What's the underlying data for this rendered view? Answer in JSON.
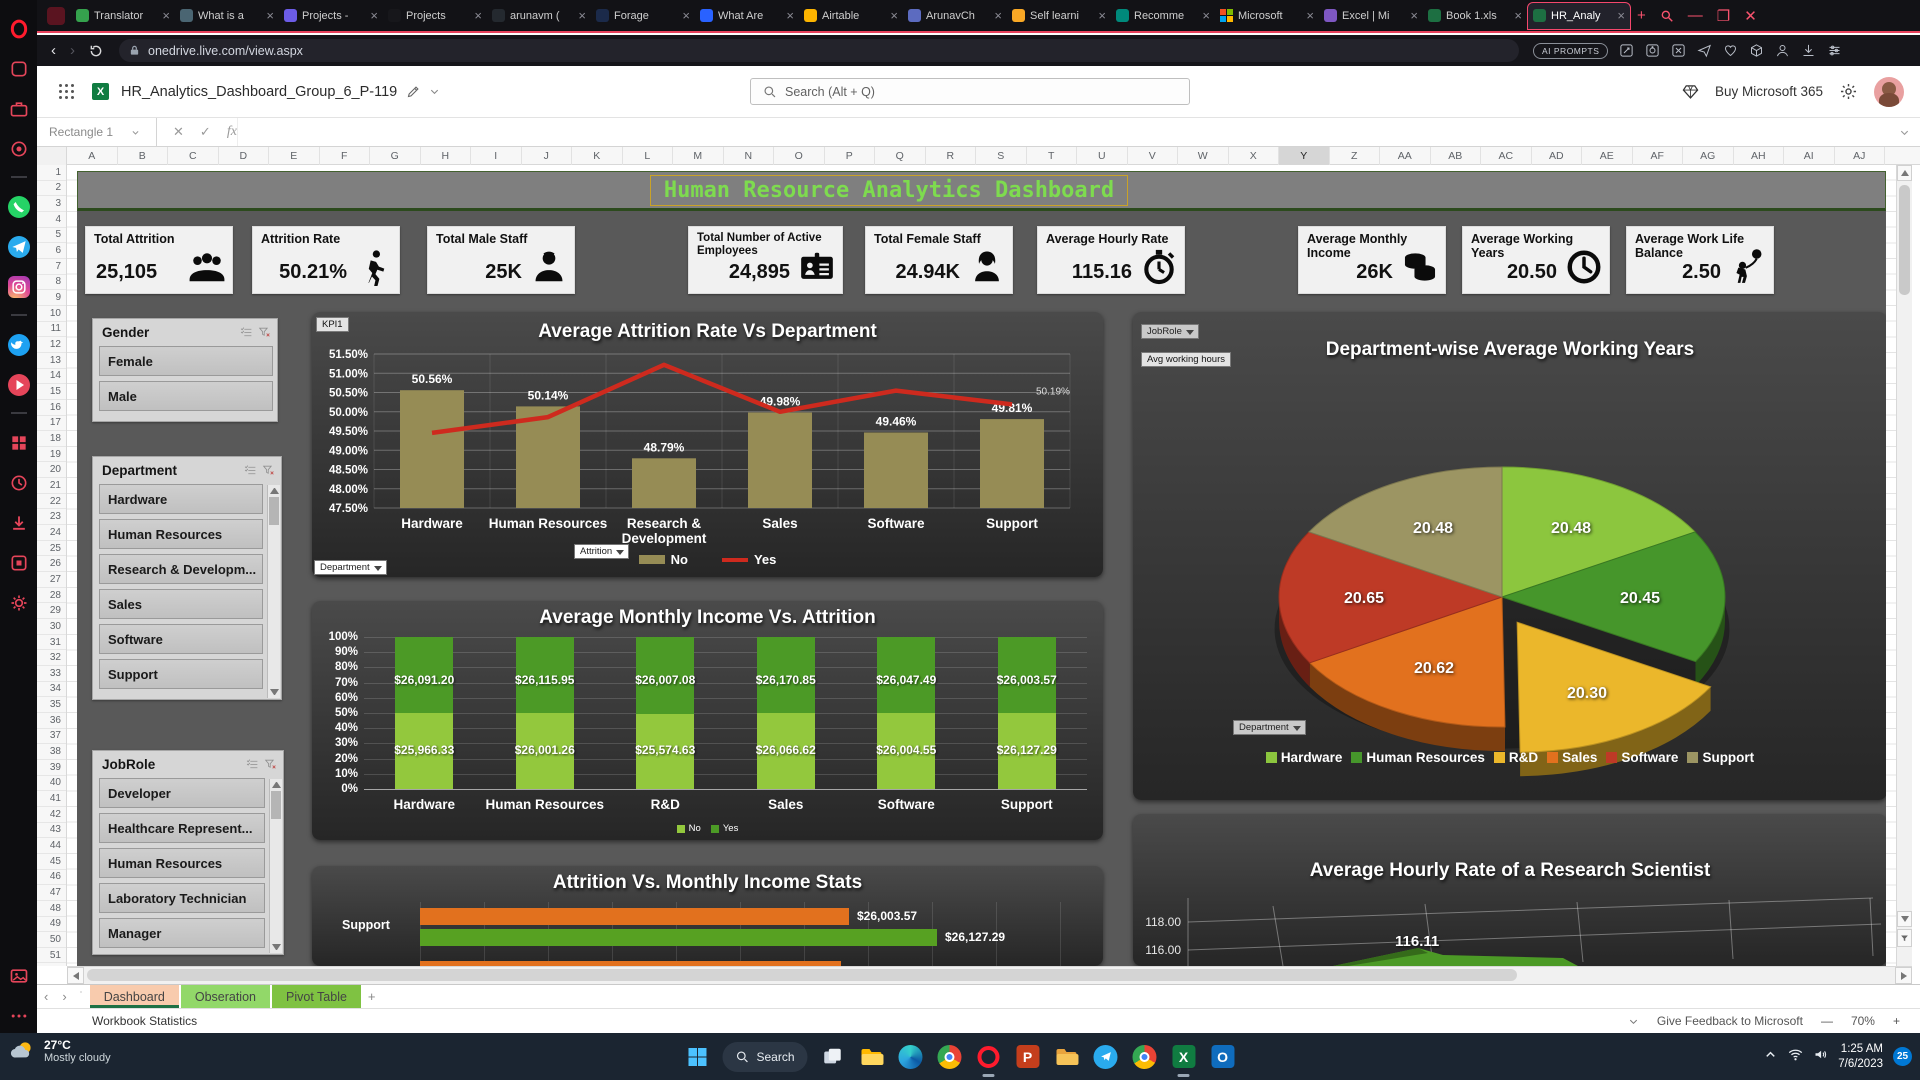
{
  "browser": {
    "tabs": [
      {
        "label": "Translator",
        "fav": "#35A24D"
      },
      {
        "label": "What is a",
        "fav": "#4A6572"
      },
      {
        "label": "Projects -",
        "fav": "#6C5CE7"
      },
      {
        "label": "Projects",
        "fav": "#17171b"
      },
      {
        "label": "arunavm (",
        "fav": "#24292f"
      },
      {
        "label": "Forage",
        "fav": "#1B2A4A"
      },
      {
        "label": "What Are",
        "fav": "#2962FF"
      },
      {
        "label": "Airtable",
        "fav": "#FCB400"
      },
      {
        "label": "ArunavCh",
        "fav": "#5C6BC0"
      },
      {
        "label": "Self learni",
        "fav": "#F9A825"
      },
      {
        "label": "Recomme",
        "fav": "#00897B"
      },
      {
        "label": "Microsoft",
        "fav": "ms"
      },
      {
        "label": "Excel | Mi",
        "fav": "#7E57C2"
      },
      {
        "label": "Book 1.xls",
        "fav": "#1D6F42"
      },
      {
        "label": "HR_Analy",
        "fav": "#1D6F42",
        "active": true
      }
    ],
    "new_tab_label": "+",
    "url": "onedrive.live.com/view.aspx",
    "ai_prompts_label": "AI PROMPTS"
  },
  "excel": {
    "filename": "HR_Analytics_Dashboard_Group_6_P-119",
    "search_placeholder": "Search (Alt + Q)",
    "buy_label": "Buy Microsoft 365",
    "name_box": "Rectangle 1",
    "fx_label": "fx",
    "columns": [
      "A",
      "B",
      "C",
      "D",
      "E",
      "F",
      "G",
      "H",
      "I",
      "J",
      "K",
      "L",
      "M",
      "N",
      "O",
      "P",
      "Q",
      "R",
      "S",
      "T",
      "U",
      "V",
      "W",
      "X",
      "Y",
      "Z",
      "AA",
      "AB",
      "AC",
      "AD",
      "AE",
      "AF",
      "AG",
      "AH",
      "AI",
      "AJ"
    ],
    "highlighted_column": "Y",
    "row_count": 51
  },
  "dashboard": {
    "title": "Human Resource Analytics Dashboard",
    "kpis": [
      {
        "label": "Total Attrition",
        "value": "25,105",
        "icon": "group"
      },
      {
        "label": "Attrition Rate",
        "value": "50.21%",
        "icon": "walker"
      },
      {
        "label": "Total Male Staff",
        "value": "25K",
        "icon": "male"
      },
      {
        "label": "Total Number of Active Employees",
        "value": "24,895",
        "icon": "idcard"
      },
      {
        "label": "Total Female Staff",
        "value": "24.94K",
        "icon": "female"
      },
      {
        "label": "Average Hourly Rate",
        "value": "115.16",
        "icon": "stopwatch"
      },
      {
        "label": "Average Monthly Income",
        "value": "26K",
        "icon": "coins"
      },
      {
        "label": "Average Working Years",
        "value": "20.50",
        "icon": "clock"
      },
      {
        "label": "Average Work Life Balance",
        "value": "2.50",
        "icon": "balloon"
      }
    ],
    "slicers": [
      {
        "title": "Gender",
        "items": [
          "Female",
          "Male"
        ],
        "scroll": false
      },
      {
        "title": "Department",
        "items": [
          "Hardware",
          "Human Resources",
          "Research & Developm...",
          "Sales",
          "Software",
          "Support"
        ],
        "scroll": true
      },
      {
        "title": "JobRole",
        "items": [
          "Developer",
          "Healthcare Represent...",
          "Human Resources",
          "Laboratory Technician",
          "Manager"
        ],
        "scroll": true
      }
    ]
  },
  "chart_data": [
    {
      "id": "attrition-vs-department",
      "type": "bar+line",
      "title": "Average Attrition Rate Vs Department",
      "categories": [
        "Hardware",
        "Human Resources",
        "Research & Development",
        "Sales",
        "Software",
        "Support"
      ],
      "bar_series": {
        "name": "No",
        "color": "#968C55",
        "values": [
          50.56,
          50.14,
          48.79,
          49.98,
          49.46,
          49.81
        ],
        "labels": [
          "50.56%",
          "50.14%",
          "48.79%",
          "49.98%",
          "49.46%",
          "49.81%"
        ]
      },
      "line_series": {
        "name": "Yes",
        "color": "#CE2A1E",
        "values": [
          49.45,
          49.86,
          51.22,
          50.0,
          50.55,
          50.19
        ],
        "end_label": "50.19%"
      },
      "ylim": [
        47.5,
        51.5
      ],
      "y_ticks": [
        "51.50%",
        "51.00%",
        "50.50%",
        "50.00%",
        "49.50%",
        "49.00%",
        "48.50%",
        "48.00%",
        "47.50%"
      ],
      "corner_button": "KPI1",
      "filter_buttons": [
        "Attrition",
        "Department"
      ]
    },
    {
      "id": "income-vs-attrition",
      "type": "stacked-bar-100",
      "title": "Average Monthly Income Vs. Attrition",
      "categories": [
        "Hardware",
        "Human Resources",
        "R&D",
        "Sales",
        "Software",
        "Support"
      ],
      "series": [
        {
          "name": "No",
          "color": "#93C83D",
          "values": [
            25966.33,
            26001.26,
            25574.63,
            26066.62,
            26004.55,
            26127.29
          ],
          "labels": [
            "$25,966.33",
            "$26,001.26",
            "$25,574.63",
            "$26,066.62",
            "$26,004.55",
            "$26,127.29"
          ]
        },
        {
          "name": "Yes",
          "color": "#4C9A26",
          "values": [
            26091.2,
            26115.95,
            26007.08,
            26170.85,
            26047.49,
            26003.57
          ],
          "labels": [
            "$26,091.20",
            "$26,115.95",
            "$26,007.08",
            "$26,170.85",
            "$26,047.49",
            "$26,003.57"
          ]
        }
      ],
      "y_ticks": [
        "100%",
        "90%",
        "80%",
        "70%",
        "60%",
        "50%",
        "40%",
        "30%",
        "20%",
        "10%",
        "0%"
      ]
    },
    {
      "id": "working-years-pie",
      "type": "pie",
      "title": "Department-wise Average Working Years",
      "slices": [
        {
          "label": "Hardware",
          "value": 20.48,
          "color": "#8CC63E"
        },
        {
          "label": "Human Resources",
          "value": 20.45,
          "color": "#46962B"
        },
        {
          "label": "R&D",
          "value": 20.3,
          "color": "#EBB72B",
          "exploded": true
        },
        {
          "label": "Sales",
          "value": 20.62,
          "color": "#E2711E"
        },
        {
          "label": "Software",
          "value": 20.65,
          "color": "#BE3A26"
        },
        {
          "label": "Support",
          "value": 20.48,
          "color": "#9C9563"
        }
      ],
      "filter_buttons": [
        "JobRole",
        "Department"
      ],
      "measure_button": "Avg working hours"
    },
    {
      "id": "attrition-income-stats",
      "type": "hbar",
      "title": "Attrition Vs. Monthly Income Stats",
      "categories": [
        "Support"
      ],
      "series": [
        {
          "name": "Yes",
          "color": "#E2711E",
          "values": [
            26003.57
          ],
          "labels": [
            "$26,003.57"
          ]
        },
        {
          "name": "No",
          "color": "#57A122",
          "values": [
            26127.29
          ],
          "labels": [
            "$26,127.29"
          ]
        }
      ],
      "xlim": [
        25400,
        26300
      ],
      "clipped": true
    },
    {
      "id": "hourly-rate-research-scientist",
      "type": "3d-line",
      "title": "Average Hourly Rate of a Research Scientist",
      "y_ticks": [
        "118.00",
        "116.00"
      ],
      "point_label": "116.11",
      "series_color": "#4C9A26"
    }
  ],
  "sheet_tabs": {
    "tabs": [
      {
        "label": "Dashboard",
        "color": "#F8CBAD",
        "active": true
      },
      {
        "label": "Obseration",
        "color": "#92D869",
        "active": false
      },
      {
        "label": "Pivot Table",
        "color": "#7FC242",
        "active": false
      }
    ],
    "add_label": "+"
  },
  "status_bar": {
    "left": "Workbook Statistics",
    "feedback": "Give Feedback to Microsoft",
    "zoom": "70%",
    "zoom_out": "—",
    "zoom_in": "+"
  },
  "taskbar": {
    "weather_temp": "27°C",
    "weather_desc": "Mostly cloudy",
    "search_label": "Search",
    "icons": [
      "start",
      "search",
      "taskview",
      "explorer",
      "edge",
      "chrome",
      "opera",
      "powerpoint",
      "folder",
      "telegram",
      "chrome",
      "excel",
      "outlook"
    ],
    "active_icons": [
      "opera",
      "excel"
    ],
    "time": "1:25 AM",
    "date": "7/6/2023",
    "badge": "25"
  },
  "sidebar": {
    "icons": [
      "opera-logo",
      "gx-corner",
      "briefcase",
      "camera",
      "divider",
      "whatsapp",
      "telegram",
      "instagram",
      "divider",
      "twitter",
      "player",
      "divider",
      "speed-dial",
      "history",
      "downloads",
      "extensions",
      "settings"
    ],
    "bottom_icons": [
      "wallpapers",
      "ellipsis"
    ]
  }
}
